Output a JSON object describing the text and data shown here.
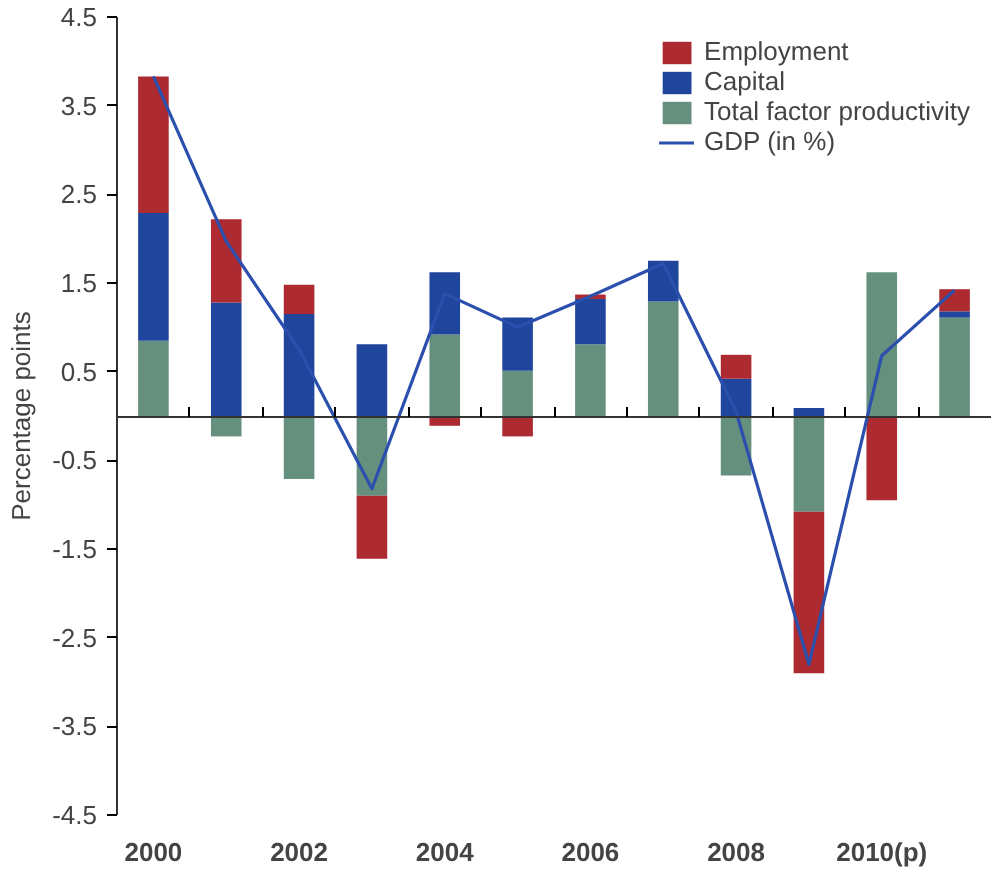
{
  "chart_data": {
    "type": "bar",
    "stacked": true,
    "ylabel": "Percentage points",
    "categories": [
      "2000",
      null,
      "2002",
      null,
      "2004",
      null,
      "2006",
      null,
      "2008",
      null,
      "2010(p)",
      null
    ],
    "ylim": [
      -4.5,
      4.5
    ],
    "yticks": [
      -4.5,
      -3.5,
      -2.5,
      -1.5,
      -0.5,
      0.5,
      1.5,
      2.5,
      3.5,
      4.5
    ],
    "grid": false,
    "legend": "top right",
    "series": [
      {
        "name": "Total factor productivity",
        "color": "#66907e",
        "values": [
          0.85,
          -0.23,
          -0.71,
          -0.9,
          0.92,
          0.51,
          0.81,
          1.29,
          -0.67,
          -1.08,
          1.62,
          1.11
        ]
      },
      {
        "name": "Capital",
        "color": "#1f459c",
        "values": [
          1.44,
          1.28,
          1.15,
          0.81,
          0.7,
          0.6,
          0.51,
          0.46,
          0.42,
          0.09,
          null,
          0.07
        ]
      },
      {
        "name": "Employment",
        "color": "#ad2a30",
        "values": [
          1.54,
          0.94,
          0.33,
          -0.71,
          -0.11,
          -0.23,
          0.05,
          null,
          0.27,
          -1.82,
          -0.95,
          0.25
        ]
      },
      {
        "name": "GDP (in %)",
        "color": "#2b4fad",
        "type": "line",
        "values": [
          3.83,
          1.97,
          0.75,
          -0.82,
          1.38,
          1.0,
          1.35,
          1.72,
          0.05,
          -2.8,
          0.68,
          1.42
        ]
      }
    ]
  }
}
